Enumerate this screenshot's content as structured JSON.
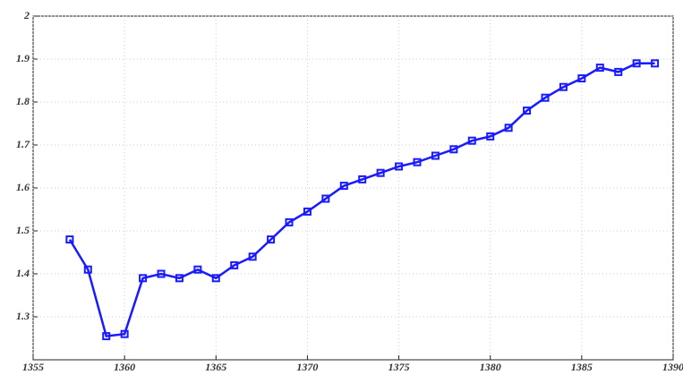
{
  "chart_data": {
    "type": "line",
    "x": [
      1357,
      1358,
      1359,
      1360,
      1361,
      1362,
      1363,
      1364,
      1365,
      1366,
      1367,
      1368,
      1369,
      1370,
      1371,
      1372,
      1373,
      1374,
      1375,
      1376,
      1377,
      1378,
      1379,
      1380,
      1381,
      1382,
      1383,
      1384,
      1385,
      1386,
      1387,
      1388,
      1389
    ],
    "series": [
      {
        "color": "#1a1aff",
        "values": [
          1.48,
          1.41,
          1.255,
          1.26,
          1.39,
          1.4,
          1.39,
          1.41,
          1.39,
          1.42,
          1.44,
          1.48,
          1.52,
          1.545,
          1.575,
          1.605,
          1.62,
          1.635,
          1.65,
          1.66,
          1.675,
          1.69,
          1.71,
          1.72,
          1.74,
          1.78,
          1.81,
          1.835,
          1.855,
          1.88,
          1.87,
          1.89,
          1.89
        ]
      }
    ],
    "xlim": [
      1355,
      1390
    ],
    "xticks": [
      1355,
      1360,
      1365,
      1370,
      1375,
      1380,
      1385,
      1390
    ],
    "ylim": [
      1.2,
      2
    ],
    "yticks": [
      1.3,
      1.4,
      1.5,
      1.6,
      1.7,
      1.8,
      1.9,
      2
    ],
    "grid": true
  }
}
